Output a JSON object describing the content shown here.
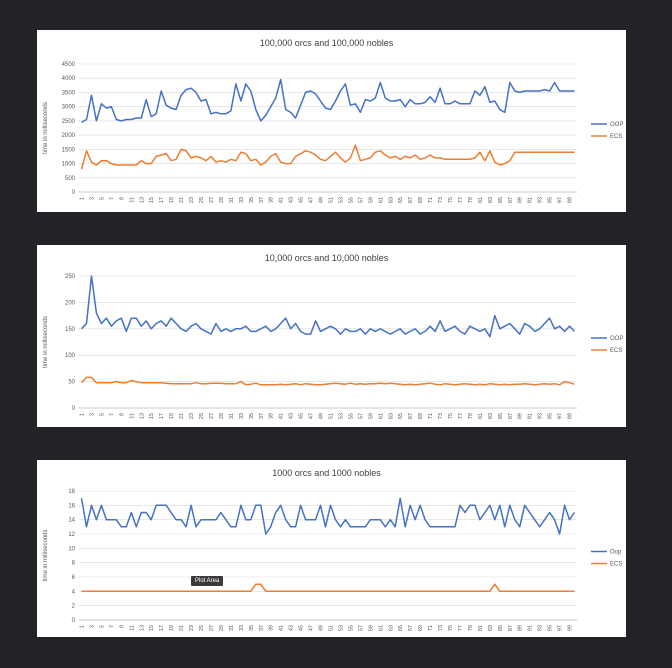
{
  "tooltip": "Plot Area",
  "chart_data": [
    {
      "type": "line",
      "title": "100,000 orcs and 100,000 nobles",
      "ylabel": "time in milliseconds",
      "xlabel": "",
      "ylim": [
        0,
        4500
      ],
      "yticks": [
        0,
        500,
        1000,
        1500,
        2000,
        2500,
        3000,
        3500,
        4000,
        4500
      ],
      "x": [
        1,
        2,
        3,
        4,
        5,
        6,
        7,
        8,
        9,
        10,
        11,
        12,
        13,
        14,
        15,
        16,
        17,
        18,
        19,
        20,
        21,
        22,
        23,
        24,
        25,
        26,
        27,
        28,
        29,
        30,
        31,
        32,
        33,
        34,
        35,
        36,
        37,
        38,
        39,
        40,
        41,
        42,
        43,
        44,
        45,
        46,
        47,
        48,
        49,
        50,
        51,
        52,
        53,
        54,
        55,
        56,
        57,
        58,
        59,
        60,
        61,
        62,
        63,
        64,
        65,
        66,
        67,
        68,
        69,
        70,
        71,
        72,
        73,
        74,
        75,
        76,
        77,
        78,
        79,
        80,
        81,
        82,
        83,
        84,
        85,
        86,
        87,
        88,
        89,
        90,
        91,
        92,
        93,
        94,
        95,
        96,
        97,
        98,
        99,
        100
      ],
      "xtick_labels": [
        "1",
        "3",
        "5",
        "7",
        "9",
        "11",
        "13",
        "15",
        "17",
        "19",
        "21",
        "23",
        "25",
        "27",
        "29",
        "31",
        "33",
        "35",
        "37",
        "39",
        "41",
        "43",
        "45",
        "47",
        "49",
        "51",
        "53",
        "55",
        "57",
        "59",
        "61",
        "63",
        "65",
        "67",
        "69",
        "71",
        "73",
        "75",
        "77",
        "79",
        "81",
        "83",
        "85",
        "87",
        "89",
        "91",
        "93",
        "95",
        "97",
        "99"
      ],
      "grid": true,
      "legend": "right",
      "series": [
        {
          "name": "OOP",
          "color": "#4472C4",
          "values": [
            2450,
            2550,
            3400,
            2500,
            3100,
            2950,
            3000,
            2550,
            2500,
            2550,
            2550,
            2600,
            2600,
            3250,
            2650,
            2750,
            3550,
            3050,
            2950,
            2900,
            3400,
            3600,
            3650,
            3500,
            3200,
            3250,
            2750,
            2800,
            2750,
            2750,
            2850,
            3800,
            3200,
            3800,
            3550,
            2900,
            2500,
            2700,
            3000,
            3300,
            3950,
            2900,
            2800,
            2600,
            3050,
            3500,
            3550,
            3450,
            3200,
            2950,
            2900,
            3200,
            3550,
            3800,
            3050,
            3100,
            2800,
            3250,
            3200,
            3300,
            3850,
            3300,
            3200,
            3200,
            3250,
            3000,
            3250,
            3100,
            3100,
            3150,
            3350,
            3150,
            3650,
            3100,
            3100,
            3200,
            3100,
            3100,
            3100,
            3550,
            3400,
            3700,
            3150,
            3200,
            2900,
            2800,
            3850,
            3550,
            3500,
            3550,
            3550,
            3550,
            3550,
            3600,
            3550,
            3850,
            3550,
            3550,
            3550,
            3550
          ]
        },
        {
          "name": "ECS",
          "color": "#ED7D31",
          "values": [
            800,
            1450,
            1050,
            950,
            1100,
            1100,
            1000,
            950,
            950,
            950,
            950,
            950,
            1100,
            1000,
            1000,
            1250,
            1300,
            1350,
            1100,
            1150,
            1500,
            1450,
            1200,
            1250,
            1200,
            1100,
            1250,
            1050,
            1100,
            1050,
            1150,
            1100,
            1400,
            1350,
            1100,
            1150,
            950,
            1050,
            1250,
            1350,
            1050,
            1000,
            1000,
            1250,
            1350,
            1450,
            1400,
            1300,
            1150,
            1100,
            1250,
            1400,
            1200,
            1050,
            1200,
            1650,
            1100,
            1150,
            1200,
            1400,
            1450,
            1300,
            1200,
            1250,
            1150,
            1250,
            1200,
            1300,
            1150,
            1200,
            1300,
            1200,
            1200,
            1150,
            1150,
            1150,
            1150,
            1150,
            1150,
            1200,
            1400,
            1100,
            1450,
            1050,
            950,
            1000,
            1100,
            1400,
            1400,
            1400,
            1400,
            1400,
            1400,
            1400,
            1400,
            1400,
            1400,
            1400,
            1400,
            1400
          ]
        }
      ]
    },
    {
      "type": "line",
      "title": "10,000 orcs and 10,000 nobles",
      "ylabel": "time in milliseconds",
      "xlabel": "",
      "ylim": [
        0,
        250
      ],
      "yticks": [
        0,
        50,
        100,
        150,
        200,
        250
      ],
      "x": [
        1,
        2,
        3,
        4,
        5,
        6,
        7,
        8,
        9,
        10,
        11,
        12,
        13,
        14,
        15,
        16,
        17,
        18,
        19,
        20,
        21,
        22,
        23,
        24,
        25,
        26,
        27,
        28,
        29,
        30,
        31,
        32,
        33,
        34,
        35,
        36,
        37,
        38,
        39,
        40,
        41,
        42,
        43,
        44,
        45,
        46,
        47,
        48,
        49,
        50,
        51,
        52,
        53,
        54,
        55,
        56,
        57,
        58,
        59,
        60,
        61,
        62,
        63,
        64,
        65,
        66,
        67,
        68,
        69,
        70,
        71,
        72,
        73,
        74,
        75,
        76,
        77,
        78,
        79,
        80,
        81,
        82,
        83,
        84,
        85,
        86,
        87,
        88,
        89,
        90,
        91,
        92,
        93,
        94,
        95,
        96,
        97,
        98,
        99,
        100
      ],
      "xtick_labels": [
        "1",
        "3",
        "5",
        "7",
        "9",
        "11",
        "13",
        "15",
        "17",
        "19",
        "21",
        "23",
        "25",
        "27",
        "29",
        "31",
        "33",
        "35",
        "37",
        "39",
        "41",
        "43",
        "45",
        "47",
        "49",
        "51",
        "53",
        "55",
        "57",
        "59",
        "61",
        "63",
        "65",
        "67",
        "69",
        "71",
        "73",
        "75",
        "77",
        "79",
        "81",
        "83",
        "85",
        "87",
        "89",
        "91",
        "93",
        "95",
        "97",
        "99"
      ],
      "grid": true,
      "legend": "right",
      "series": [
        {
          "name": "OOP",
          "color": "#4472C4",
          "values": [
            150,
            160,
            250,
            180,
            160,
            170,
            155,
            165,
            170,
            145,
            170,
            170,
            155,
            165,
            150,
            160,
            165,
            155,
            170,
            160,
            150,
            145,
            155,
            160,
            150,
            145,
            140,
            160,
            145,
            150,
            145,
            150,
            150,
            155,
            145,
            145,
            150,
            155,
            145,
            150,
            160,
            170,
            150,
            160,
            145,
            140,
            140,
            165,
            145,
            150,
            155,
            150,
            140,
            150,
            145,
            145,
            150,
            140,
            150,
            145,
            150,
            145,
            140,
            145,
            150,
            140,
            145,
            150,
            140,
            145,
            155,
            145,
            165,
            145,
            150,
            155,
            145,
            140,
            155,
            150,
            145,
            150,
            135,
            175,
            150,
            155,
            160,
            150,
            140,
            160,
            155,
            145,
            150,
            160,
            170,
            150,
            155,
            145,
            155,
            145
          ]
        },
        {
          "name": "ECS",
          "color": "#ED7D31",
          "values": [
            48,
            58,
            58,
            48,
            48,
            48,
            48,
            50,
            48,
            48,
            52,
            50,
            48,
            48,
            48,
            48,
            48,
            47,
            46,
            46,
            46,
            46,
            46,
            48,
            46,
            46,
            47,
            47,
            47,
            46,
            46,
            46,
            50,
            44,
            45,
            47,
            44,
            44,
            44,
            44,
            45,
            44,
            45,
            46,
            44,
            46,
            45,
            44,
            44,
            45,
            46,
            47,
            46,
            45,
            47,
            45,
            46,
            45,
            46,
            46,
            47,
            46,
            47,
            46,
            45,
            44,
            45,
            44,
            45,
            46,
            47,
            45,
            44,
            46,
            45,
            44,
            45,
            46,
            45,
            44,
            45,
            44,
            46,
            45,
            44,
            45,
            44,
            45,
            45,
            46,
            45,
            44,
            45,
            46,
            45,
            46,
            44,
            50,
            48,
            45
          ]
        }
      ]
    },
    {
      "type": "line",
      "title": "1000 orcs and 1000 nobles",
      "ylabel": "time in milliseconds",
      "xlabel": "",
      "ylim": [
        0,
        18
      ],
      "yticks": [
        0,
        2,
        4,
        6,
        8,
        10,
        12,
        14,
        16,
        18
      ],
      "x": [
        1,
        2,
        3,
        4,
        5,
        6,
        7,
        8,
        9,
        10,
        11,
        12,
        13,
        14,
        15,
        16,
        17,
        18,
        19,
        20,
        21,
        22,
        23,
        24,
        25,
        26,
        27,
        28,
        29,
        30,
        31,
        32,
        33,
        34,
        35,
        36,
        37,
        38,
        39,
        40,
        41,
        42,
        43,
        44,
        45,
        46,
        47,
        48,
        49,
        50,
        51,
        52,
        53,
        54,
        55,
        56,
        57,
        58,
        59,
        60,
        61,
        62,
        63,
        64,
        65,
        66,
        67,
        68,
        69,
        70,
        71,
        72,
        73,
        74,
        75,
        76,
        77,
        78,
        79,
        80,
        81,
        82,
        83,
        84,
        85,
        86,
        87,
        88,
        89,
        90,
        91,
        92,
        93,
        94,
        95,
        96,
        97,
        98,
        99,
        100
      ],
      "xtick_labels": [
        "1",
        "3",
        "5",
        "7",
        "9",
        "11",
        "13",
        "15",
        "17",
        "19",
        "21",
        "23",
        "25",
        "27",
        "29",
        "31",
        "33",
        "35",
        "37",
        "39",
        "41",
        "43",
        "45",
        "47",
        "49",
        "51",
        "53",
        "55",
        "57",
        "59",
        "61",
        "63",
        "65",
        "67",
        "69",
        "71",
        "73",
        "75",
        "77",
        "79",
        "81",
        "83",
        "85",
        "87",
        "89",
        "91",
        "93",
        "95",
        "97",
        "99"
      ],
      "grid": true,
      "legend": "right",
      "series": [
        {
          "name": "Oop",
          "color": "#4472C4",
          "values": [
            17,
            13,
            16,
            14,
            16,
            14,
            14,
            14,
            13,
            13,
            15,
            13,
            15,
            15,
            14,
            16,
            16,
            16,
            15,
            14,
            14,
            13,
            16,
            13,
            14,
            14,
            14,
            14,
            15,
            14,
            13,
            13,
            16,
            14,
            14,
            16,
            16,
            12,
            13,
            15,
            16,
            14,
            13,
            13,
            16,
            14,
            14,
            14,
            16,
            13,
            16,
            14,
            13,
            14,
            13,
            13,
            13,
            13,
            14,
            14,
            14,
            13,
            14,
            13,
            17,
            13,
            16,
            14,
            16,
            14,
            13,
            13,
            13,
            13,
            13,
            13,
            16,
            15,
            16,
            16,
            14,
            15,
            16,
            14,
            16,
            13,
            16,
            14,
            13,
            16,
            15,
            14,
            13,
            14,
            15,
            14,
            12,
            16,
            14,
            15
          ]
        },
        {
          "name": "ECS",
          "color": "#ED7D31",
          "values": [
            4,
            4,
            4,
            4,
            4,
            4,
            4,
            4,
            4,
            4,
            4,
            4,
            4,
            4,
            4,
            4,
            4,
            4,
            4,
            4,
            4,
            4,
            4,
            4,
            4,
            4,
            4,
            4,
            4,
            4,
            4,
            4,
            4,
            4,
            4,
            5,
            5,
            4,
            4,
            4,
            4,
            4,
            4,
            4,
            4,
            4,
            4,
            4,
            4,
            4,
            4,
            4,
            4,
            4,
            4,
            4,
            4,
            4,
            4,
            4,
            4,
            4,
            4,
            4,
            4,
            4,
            4,
            4,
            4,
            4,
            4,
            4,
            4,
            4,
            4,
            4,
            4,
            4,
            4,
            4,
            4,
            4,
            4,
            5,
            4,
            4,
            4,
            4,
            4,
            4,
            4,
            4,
            4,
            4,
            4,
            4,
            4,
            4,
            4,
            4
          ]
        }
      ]
    }
  ]
}
